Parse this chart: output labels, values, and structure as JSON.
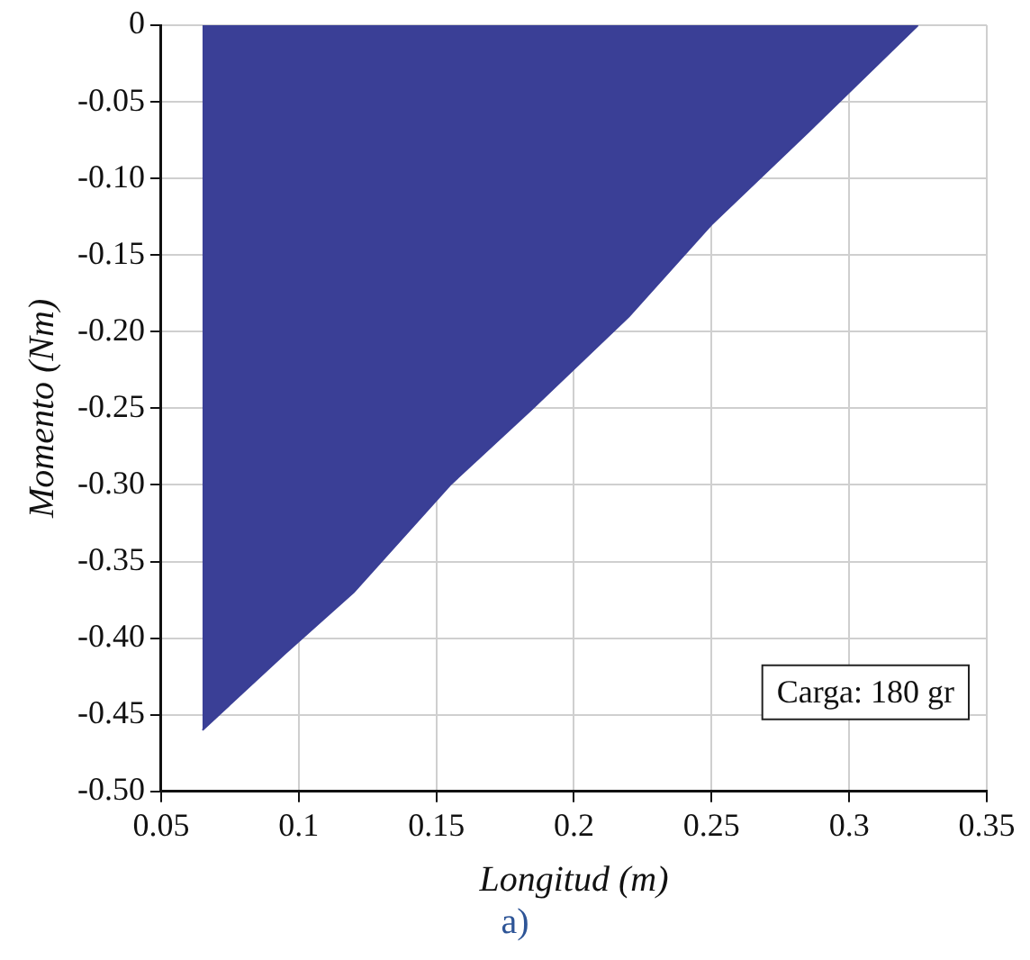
{
  "chart_data": {
    "type": "area",
    "xlabel": "Longitud (m)",
    "ylabel": "Momento (Nm)",
    "x": [
      0.065,
      0.095,
      0.12,
      0.155,
      0.185,
      0.22,
      0.25,
      0.285,
      0.325
    ],
    "series": [
      {
        "color": "#3a3f96",
        "values": [
          -0.46,
          -0.41,
          -0.37,
          -0.3,
          -0.25,
          -0.19,
          -0.13,
          -0.07,
          0
        ]
      }
    ],
    "xlim": [
      0.05,
      0.35
    ],
    "xticks": [
      0.05,
      0.1,
      0.15,
      0.2,
      0.25,
      0.3,
      0.35
    ],
    "ylim": [
      -0.5,
      0
    ],
    "yticks": [
      {
        "value": -0.5,
        "label": "-0.50"
      },
      {
        "value": -0.45,
        "label": "-0.45"
      },
      {
        "value": -0.4,
        "label": "-0.40"
      },
      {
        "value": -0.35,
        "label": "-0.35"
      },
      {
        "value": -0.3,
        "label": "-0.30"
      },
      {
        "value": -0.25,
        "label": "-0.25"
      },
      {
        "value": -0.2,
        "label": "-0.20"
      },
      {
        "value": -0.15,
        "label": "-0.15"
      },
      {
        "value": -0.1,
        "label": "-0.10"
      },
      {
        "value": -0.05,
        "label": "-0.05"
      },
      0
    ],
    "grid": true,
    "legend": false,
    "annotations": [
      "Carga: 180 gr",
      "a)"
    ]
  }
}
